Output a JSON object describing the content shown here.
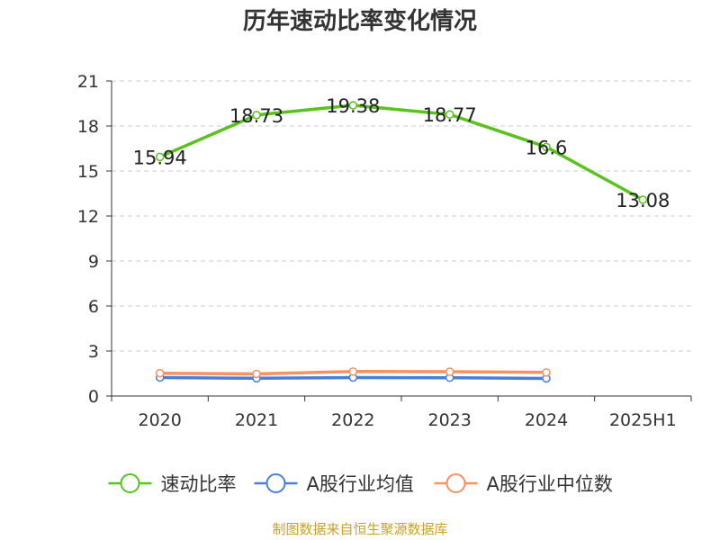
{
  "title": "历年速动比率变化情况",
  "source": "制图数据来自恒生聚源数据库",
  "colors": {
    "series": [
      "#5ac21e",
      "#4a7fd9",
      "#f49263"
    ],
    "axis": "#333333",
    "grid": "#cccccc",
    "source": "#c9a227",
    "title": "#333333"
  },
  "chart_data": {
    "type": "line",
    "categories": [
      "2020",
      "2021",
      "2022",
      "2023",
      "2024",
      "2025H1"
    ],
    "ylim": [
      0,
      21
    ],
    "yticks": [
      0,
      3,
      6,
      9,
      12,
      15,
      18,
      21
    ],
    "grid": true,
    "grid_style": "dashed-horizontal",
    "legend_position": "bottom",
    "series": [
      {
        "name": "速动比率",
        "values": [
          15.94,
          18.73,
          19.38,
          18.77,
          16.6,
          13.08
        ],
        "labels": [
          "15.94",
          "18.73",
          "19.38",
          "18.77",
          "16.6",
          "13.08"
        ]
      },
      {
        "name": "A股行业均值",
        "values": [
          1.23,
          1.18,
          1.23,
          1.22,
          1.17,
          null
        ]
      },
      {
        "name": "A股行业中位数",
        "values": [
          1.52,
          1.47,
          1.63,
          1.62,
          1.57,
          null
        ]
      }
    ]
  }
}
